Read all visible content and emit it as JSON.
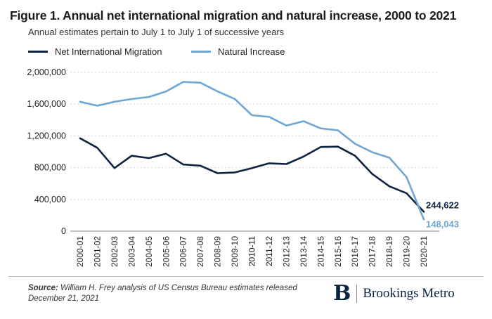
{
  "chart_data": {
    "type": "line",
    "title": "Figure 1. Annual net international migration and natural increase, 2000 to 2021",
    "subtitle": "Annual estimates pertain to July 1 to July 1 of successive years",
    "categories": [
      "2000-01",
      "2001-02",
      "2002-03",
      "2003-04",
      "2004-05",
      "2005-06",
      "2006-07",
      "2007-08",
      "2008-09",
      "2009-10",
      "2010-11",
      "2011-12",
      "2012-13",
      "2013-14",
      "2014-15",
      "2015-16",
      "2016-17",
      "2017-18",
      "2018-19",
      "2019-20",
      "2020-21"
    ],
    "series": [
      {
        "name": "Net International Migration",
        "color": "#0f2340",
        "values": [
          1170000,
          1050000,
          795000,
          950000,
          920000,
          975000,
          840000,
          825000,
          730000,
          740000,
          795000,
          855000,
          845000,
          940000,
          1060000,
          1065000,
          950000,
          720000,
          565000,
          477000,
          244622
        ],
        "end_label": "244,622"
      },
      {
        "name": "Natural Increase",
        "color": "#6ea6d4",
        "values": [
          1630000,
          1580000,
          1630000,
          1665000,
          1690000,
          1760000,
          1880000,
          1870000,
          1760000,
          1665000,
          1460000,
          1440000,
          1330000,
          1385000,
          1295000,
          1270000,
          1100000,
          995000,
          925000,
          680000,
          148043
        ],
        "end_label": "148,043"
      }
    ],
    "ylim": [
      0,
      2000000
    ],
    "yticks": [
      0,
      400000,
      800000,
      1200000,
      1600000,
      2000000
    ],
    "ytick_labels": [
      "0",
      "400,000",
      "800,000",
      "1,200,000",
      "1,600,000",
      "2,000,000"
    ],
    "grid": true,
    "legend": "top-left",
    "xlabel": "",
    "ylabel": ""
  },
  "footer": {
    "source_label": "Source:",
    "source_text": "William H. Frey analysis of US Census Bureau estimates released December 21, 2021"
  },
  "logo": {
    "mark": "B",
    "text": "Brookings Metro"
  }
}
